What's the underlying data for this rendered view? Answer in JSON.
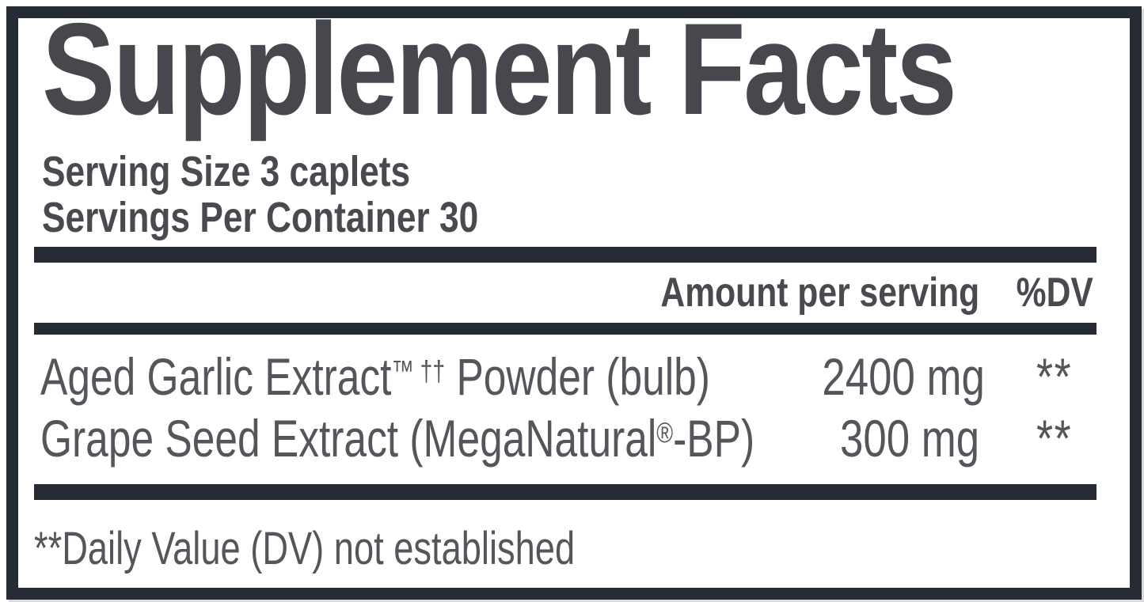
{
  "panel": {
    "title": "Supplement Facts",
    "serving_size_label": "Serving Size 3 caplets",
    "servings_per_container_label": "Servings Per Container 30",
    "header": {
      "amount_column": "Amount per serving",
      "dv_column": "%DV"
    },
    "ingredients": [
      {
        "name_prefix": "Aged Garlic Extract",
        "name_superscript": "™ ††",
        "name_suffix": " Powder (bulb)",
        "amount": "2400 mg",
        "daily_value": "**"
      },
      {
        "name_prefix": "Grape Seed Extract (MegaNatural",
        "name_superscript": "®",
        "name_suffix": "-BP)",
        "amount": "300 mg",
        "daily_value": "**"
      }
    ],
    "footnote": "**Daily Value (DV) not established"
  },
  "colors": {
    "frame": "#272b33",
    "title_text": "#47484d",
    "heading_text": "#494a4f",
    "body_text": "#54565b"
  }
}
